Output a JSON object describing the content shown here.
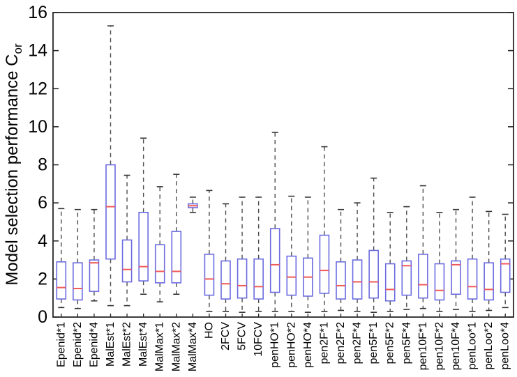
{
  "figure": {
    "ylabel_main": "Model selection performance C",
    "ylabel_sub": "or"
  },
  "chart_data": {
    "type": "boxplot",
    "title": "",
    "xlabel": "",
    "ylabel": "Model selection performance C_or",
    "ylim": [
      0,
      16
    ],
    "yticks": [
      "0",
      "2",
      "4",
      "6",
      "8",
      "10",
      "12",
      "14",
      "16"
    ],
    "grid": false,
    "legend": null,
    "categories": [
      "Epenid*1",
      "Epenid*2",
      "Epenid*4",
      "MalEst*1",
      "MalEst*2",
      "MalEst*4",
      "MalMax*1",
      "MalMax*2",
      "MalMax*4",
      "HO",
      "2FCV",
      "5FCV",
      "10FCV",
      "penHO*1",
      "penHO*2",
      "penHO*4",
      "pen2F*1",
      "pen2F*2",
      "pen2F*4",
      "pen5F*1",
      "pen5F*2",
      "pen5F*4",
      "pen10F*1",
      "pen10F*2",
      "pen10F*4",
      "penLoo*1",
      "penLoo*2",
      "penLoo*4"
    ],
    "boxes": [
      {
        "whislo": 0.5,
        "q1": 0.95,
        "med": 1.55,
        "q3": 2.9,
        "whishi": 5.7
      },
      {
        "whislo": 0.45,
        "q1": 0.9,
        "med": 1.5,
        "q3": 2.85,
        "whishi": 5.65
      },
      {
        "whislo": 0.85,
        "q1": 1.35,
        "med": 2.85,
        "q3": 3.0,
        "whishi": 5.65
      },
      {
        "whislo": 0.6,
        "q1": 3.05,
        "med": 5.8,
        "q3": 8.0,
        "whishi": 15.3
      },
      {
        "whislo": 0.6,
        "q1": 1.85,
        "med": 2.5,
        "q3": 4.05,
        "whishi": 7.45
      },
      {
        "whislo": 1.2,
        "q1": 1.9,
        "med": 2.65,
        "q3": 5.5,
        "whishi": 9.4
      },
      {
        "whislo": 0.8,
        "q1": 1.8,
        "med": 2.4,
        "q3": 3.8,
        "whishi": 6.85
      },
      {
        "whislo": 1.2,
        "q1": 1.8,
        "med": 2.4,
        "q3": 4.5,
        "whishi": 7.5
      },
      {
        "whislo": 5.5,
        "q1": 5.75,
        "med": 5.85,
        "q3": 5.95,
        "whishi": 6.3
      },
      {
        "whislo": 0.3,
        "q1": 1.15,
        "med": 2.0,
        "q3": 3.3,
        "whishi": 6.65
      },
      {
        "whislo": 0.3,
        "q1": 0.95,
        "med": 1.75,
        "q3": 2.95,
        "whishi": 5.95
      },
      {
        "whislo": 0.25,
        "q1": 1.0,
        "med": 1.65,
        "q3": 3.05,
        "whishi": 6.3
      },
      {
        "whislo": 0.3,
        "q1": 0.95,
        "med": 1.6,
        "q3": 3.05,
        "whishi": 6.3
      },
      {
        "whislo": 0.3,
        "q1": 1.3,
        "med": 2.75,
        "q3": 4.65,
        "whishi": 9.7
      },
      {
        "whislo": 0.3,
        "q1": 1.15,
        "med": 2.1,
        "q3": 3.2,
        "whishi": 6.35
      },
      {
        "whislo": 0.25,
        "q1": 1.1,
        "med": 2.1,
        "q3": 3.1,
        "whishi": 6.3
      },
      {
        "whislo": 0.3,
        "q1": 1.25,
        "med": 2.45,
        "q3": 4.3,
        "whishi": 8.95
      },
      {
        "whislo": 0.35,
        "q1": 0.95,
        "med": 1.65,
        "q3": 2.9,
        "whishi": 5.65
      },
      {
        "whislo": 0.3,
        "q1": 0.95,
        "med": 1.85,
        "q3": 3.0,
        "whishi": 6.0
      },
      {
        "whislo": 0.25,
        "q1": 1.0,
        "med": 1.85,
        "q3": 3.5,
        "whishi": 7.3
      },
      {
        "whislo": 0.3,
        "q1": 0.85,
        "med": 1.45,
        "q3": 2.8,
        "whishi": 5.5
      },
      {
        "whislo": 0.4,
        "q1": 1.15,
        "med": 2.7,
        "q3": 2.95,
        "whishi": 5.8
      },
      {
        "whislo": 0.45,
        "q1": 1.0,
        "med": 1.7,
        "q3": 3.3,
        "whishi": 6.9
      },
      {
        "whislo": 0.3,
        "q1": 0.9,
        "med": 1.4,
        "q3": 2.8,
        "whishi": 5.5
      },
      {
        "whislo": 0.4,
        "q1": 1.2,
        "med": 2.75,
        "q3": 2.95,
        "whishi": 5.65
      },
      {
        "whislo": 0.3,
        "q1": 0.95,
        "med": 1.6,
        "q3": 3.05,
        "whishi": 6.3
      },
      {
        "whislo": 0.35,
        "q1": 0.9,
        "med": 1.45,
        "q3": 2.85,
        "whishi": 5.55
      },
      {
        "whislo": 0.5,
        "q1": 1.3,
        "med": 2.8,
        "q3": 3.05,
        "whishi": 5.4
      }
    ],
    "colors": {
      "box": "#6b6be0",
      "median": "#ef5a5a",
      "whisker": "#4d4d4d",
      "cap": "#333333",
      "axis": "#262626",
      "background": "#ffffff"
    }
  }
}
